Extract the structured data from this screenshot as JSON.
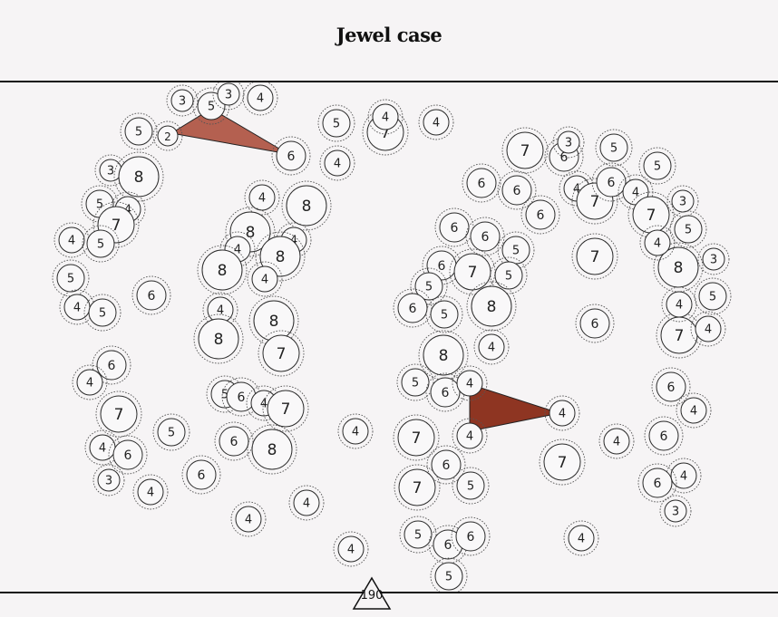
{
  "title": "Jewel case",
  "score": "190",
  "colors": {
    "background": "#f6f4f5",
    "line": "#111111",
    "wedge_light": "#b46050",
    "wedge_dark": "#8e3522"
  },
  "wedges": [
    {
      "from": "node-2",
      "via": "node-5a",
      "to": "node-6a",
      "color": "#b46050"
    },
    {
      "from": "node-5b",
      "via": "node-4b",
      "to": "node-4c",
      "color": "#8e3522"
    }
  ],
  "nodes": [
    {
      "n": "3"
    },
    {
      "n": "5"
    },
    {
      "n": "3"
    },
    {
      "n": "4"
    },
    {
      "n": "5"
    },
    {
      "n": "2"
    },
    {
      "n": "6"
    },
    {
      "n": "5"
    },
    {
      "n": "7"
    },
    {
      "n": "4"
    },
    {
      "n": "4"
    },
    {
      "n": "4"
    },
    {
      "n": "3"
    },
    {
      "n": "8"
    },
    {
      "n": "5"
    },
    {
      "n": "4"
    },
    {
      "n": "7"
    },
    {
      "n": "4"
    },
    {
      "n": "5"
    },
    {
      "n": "5"
    },
    {
      "n": "4"
    },
    {
      "n": "5"
    },
    {
      "n": "6"
    },
    {
      "n": "4"
    },
    {
      "n": "8"
    },
    {
      "n": "8"
    },
    {
      "n": "4"
    },
    {
      "n": "4"
    },
    {
      "n": "8"
    },
    {
      "n": "8"
    },
    {
      "n": "4"
    },
    {
      "n": "4"
    },
    {
      "n": "8"
    },
    {
      "n": "8"
    },
    {
      "n": "7"
    },
    {
      "n": "6"
    },
    {
      "n": "4"
    },
    {
      "n": "7"
    },
    {
      "n": "4"
    },
    {
      "n": "6"
    },
    {
      "n": "3"
    },
    {
      "n": "4"
    },
    {
      "n": "5"
    },
    {
      "n": "6"
    },
    {
      "n": "4"
    },
    {
      "n": "5"
    },
    {
      "n": "6"
    },
    {
      "n": "8"
    },
    {
      "n": "4"
    },
    {
      "n": "7"
    },
    {
      "n": "4"
    },
    {
      "n": "6"
    },
    {
      "n": "4"
    },
    {
      "n": "4"
    },
    {
      "n": "7"
    },
    {
      "n": "6"
    },
    {
      "n": "3"
    },
    {
      "n": "5"
    },
    {
      "n": "6"
    },
    {
      "n": "6"
    },
    {
      "n": "6"
    },
    {
      "n": "4"
    },
    {
      "n": "7"
    },
    {
      "n": "6"
    },
    {
      "n": "4"
    },
    {
      "n": "5"
    },
    {
      "n": "3"
    },
    {
      "n": "7"
    },
    {
      "n": "5"
    },
    {
      "n": "6"
    },
    {
      "n": "6"
    },
    {
      "n": "5"
    },
    {
      "n": "6"
    },
    {
      "n": "7"
    },
    {
      "n": "5"
    },
    {
      "n": "5"
    },
    {
      "n": "6"
    },
    {
      "n": "5"
    },
    {
      "n": "8"
    },
    {
      "n": "4"
    },
    {
      "n": "8"
    },
    {
      "n": "5"
    },
    {
      "n": "6"
    },
    {
      "n": "4"
    },
    {
      "n": "7"
    },
    {
      "n": "8"
    },
    {
      "n": "3"
    },
    {
      "n": "4"
    },
    {
      "n": "5"
    },
    {
      "n": "6"
    },
    {
      "n": "7"
    },
    {
      "n": "4"
    },
    {
      "n": "4"
    },
    {
      "n": "6"
    },
    {
      "n": "4"
    },
    {
      "n": "6"
    },
    {
      "n": "4"
    },
    {
      "n": "6"
    },
    {
      "n": "3"
    },
    {
      "n": "7"
    },
    {
      "n": "4"
    },
    {
      "n": "6"
    },
    {
      "n": "7"
    },
    {
      "n": "5"
    },
    {
      "n": "4"
    },
    {
      "n": "5"
    },
    {
      "n": "6"
    },
    {
      "n": "6"
    },
    {
      "n": "5"
    },
    {
      "n": "7"
    },
    {
      "n": "4"
    },
    {
      "n": "4"
    }
  ]
}
